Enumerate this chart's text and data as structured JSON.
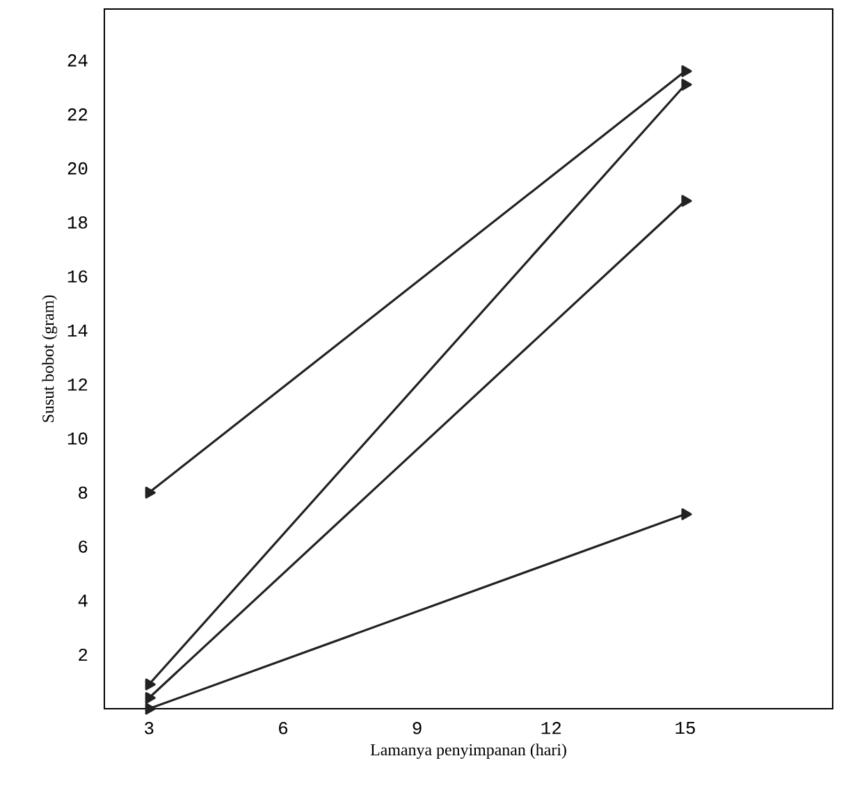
{
  "chart_data": {
    "type": "line",
    "xlabel": "Lamanya penyimpanan (hari)",
    "ylabel": "Susut bobot (gram)",
    "x": [
      3,
      15
    ],
    "series": [
      {
        "color": "#222222",
        "values": [
          8,
          23.6
        ]
      },
      {
        "color": "#222222",
        "values": [
          0.9,
          23.1
        ]
      },
      {
        "color": "#222222",
        "values": [
          0.4,
          18.8
        ]
      },
      {
        "color": "#222222",
        "values": [
          0,
          7.2
        ]
      }
    ],
    "xlim": [
      2,
      18.3
    ],
    "ylim": [
      0,
      25.9
    ],
    "xticks": [
      3,
      6,
      9,
      12,
      15
    ],
    "yticks": [
      2,
      4,
      6,
      8,
      10,
      12,
      14,
      16,
      18,
      20,
      22,
      24
    ],
    "grid": false,
    "marker": "triangle",
    "line_style": "solid"
  }
}
